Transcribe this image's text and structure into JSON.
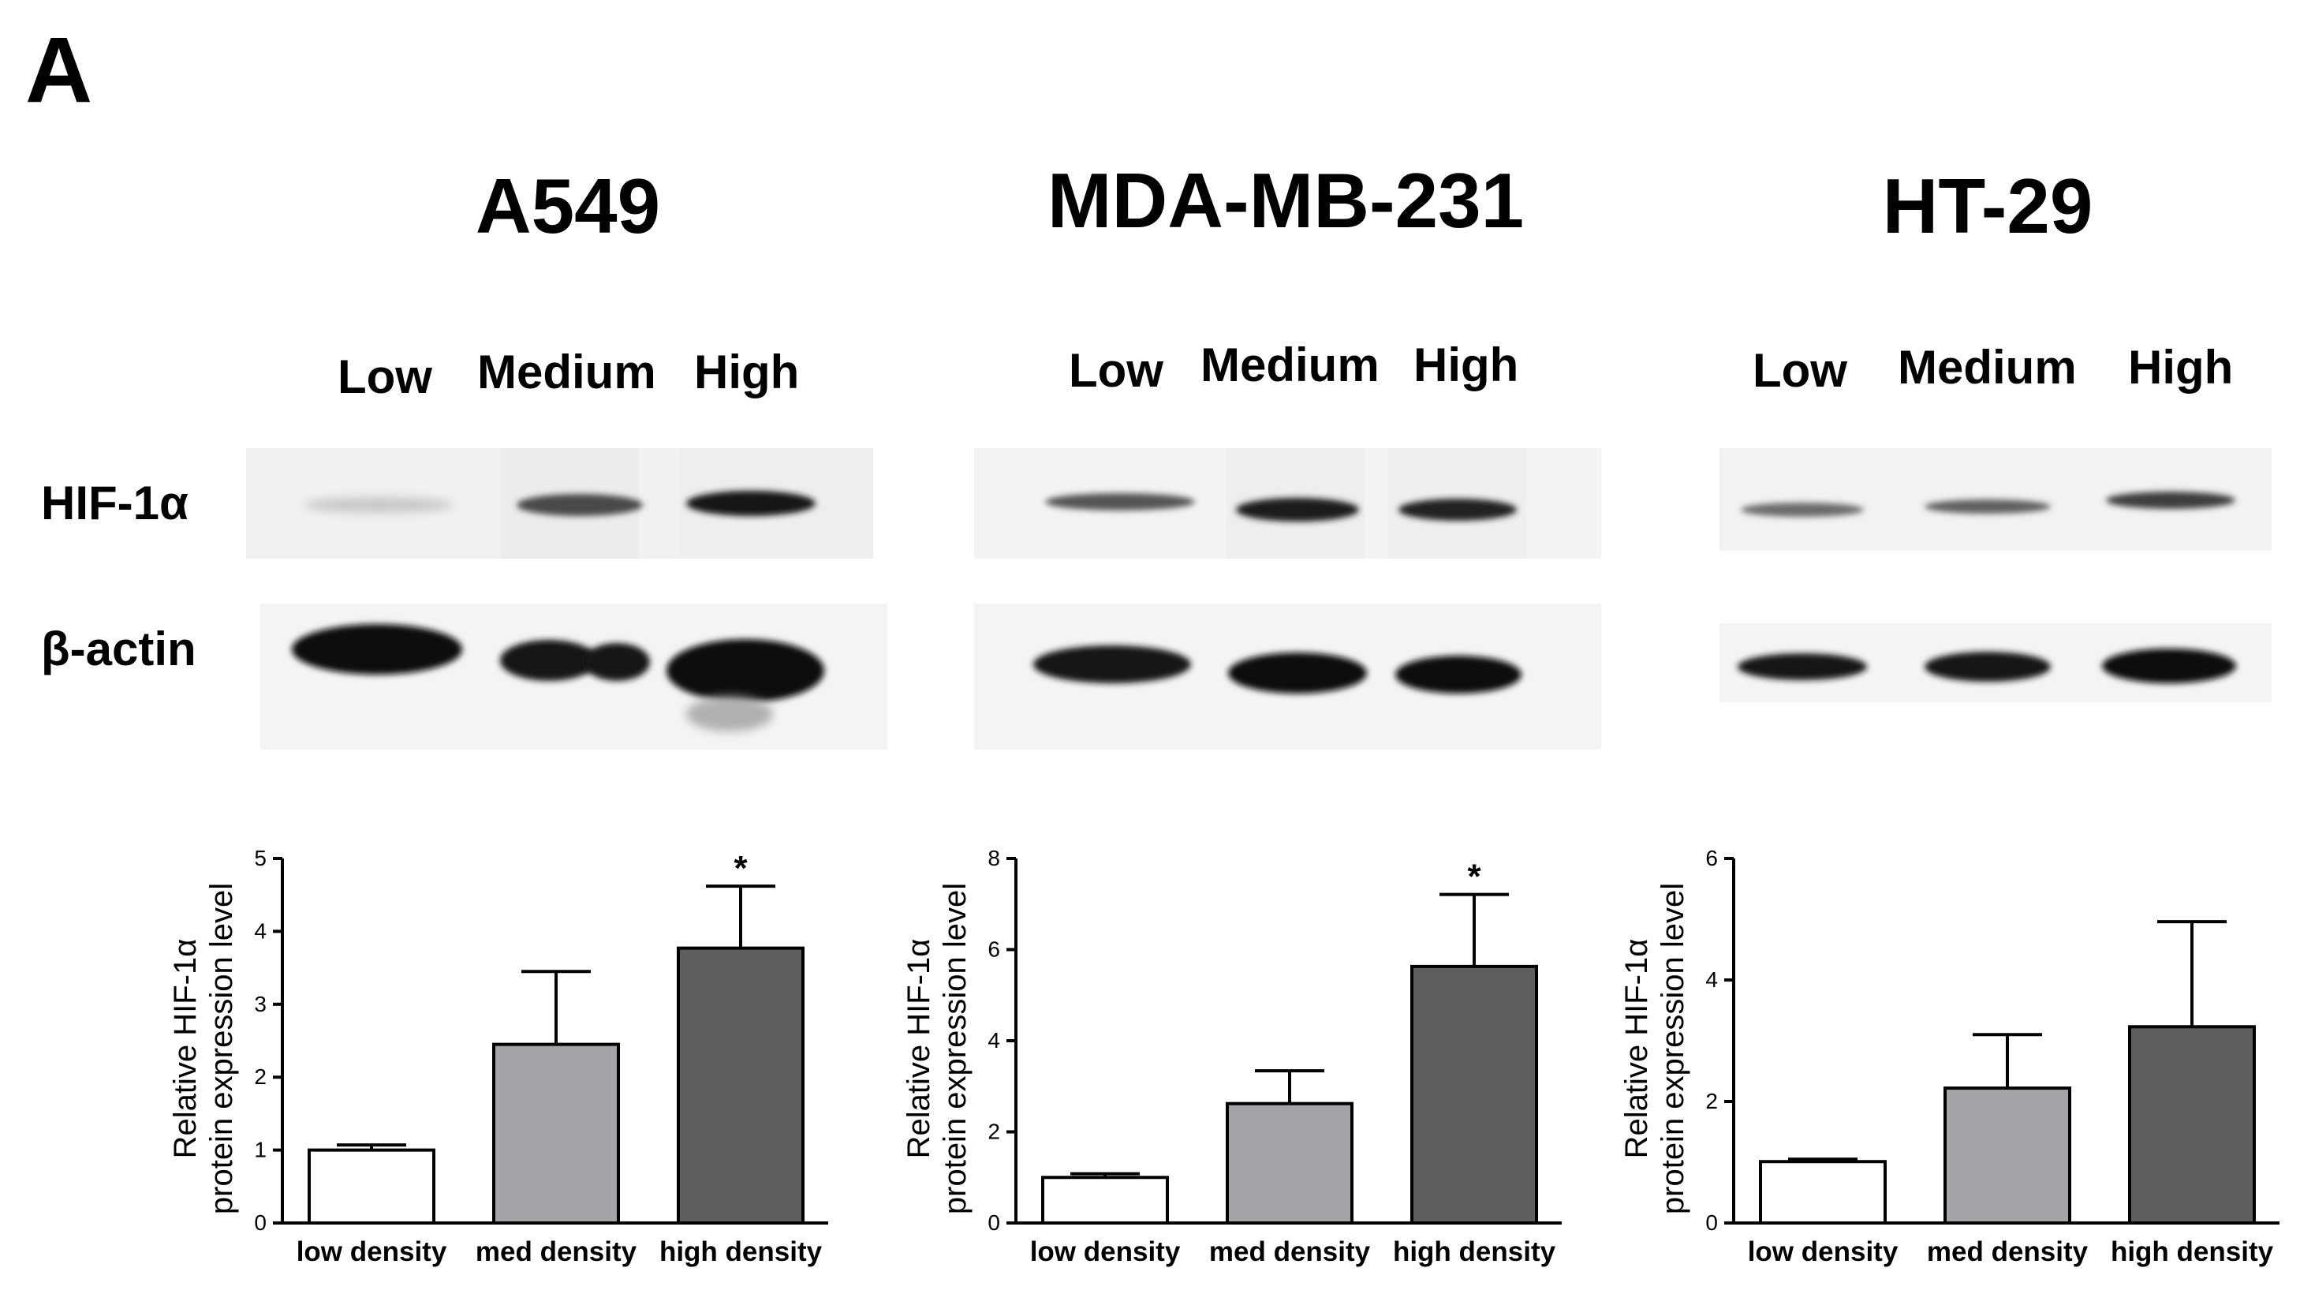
{
  "figure": {
    "panel_label": "A",
    "row_labels": {
      "target": "HIF-1α",
      "loading": "β-actin"
    },
    "lane_labels": [
      "Low",
      "Medium",
      "High"
    ]
  },
  "cells": [
    {
      "name": "A549"
    },
    {
      "name": "MDA-MB-231"
    },
    {
      "name": "HT-29"
    }
  ],
  "chart_data": [
    {
      "type": "bar",
      "title": "A549",
      "categories": [
        "low density",
        "med density",
        "high density"
      ],
      "values": [
        1.0,
        2.45,
        3.77
      ],
      "errors": [
        0.07,
        1.0,
        0.85
      ],
      "significance": [
        "",
        "",
        "*"
      ],
      "bar_colors": [
        "#ffffff",
        "#a4a4a8",
        "#5e5e5e"
      ],
      "ylabel_lines": [
        "Relative HIF-1α",
        "protein expression level"
      ],
      "ylim": [
        0,
        5
      ],
      "yticks": [
        0,
        1,
        2,
        3,
        4,
        5
      ]
    },
    {
      "type": "bar",
      "title": "MDA-MB-231",
      "categories": [
        "low density",
        "med density",
        "high density"
      ],
      "values": [
        1.0,
        2.62,
        5.63
      ],
      "errors": [
        0.08,
        0.72,
        1.58
      ],
      "significance": [
        "",
        "",
        "*"
      ],
      "bar_colors": [
        "#ffffff",
        "#a4a4a8",
        "#5e5e5e"
      ],
      "ylabel_lines": [
        "Relative HIF-1α",
        "protein expression level"
      ],
      "ylim": [
        0,
        8
      ],
      "yticks": [
        0,
        2,
        4,
        6,
        8
      ]
    },
    {
      "type": "bar",
      "title": "HT-29",
      "categories": [
        "low density",
        "med density",
        "high density"
      ],
      "values": [
        1.01,
        2.22,
        3.23
      ],
      "errors": [
        0.04,
        0.88,
        1.73
      ],
      "significance": [
        "",
        "",
        ""
      ],
      "bar_colors": [
        "#ffffff",
        "#a4a4a8",
        "#5e5e5e"
      ],
      "ylabel_lines": [
        "Relative HIF-1α",
        "protein expression level"
      ],
      "ylim": [
        0,
        6
      ],
      "yticks": [
        0,
        2,
        4,
        6
      ]
    }
  ]
}
